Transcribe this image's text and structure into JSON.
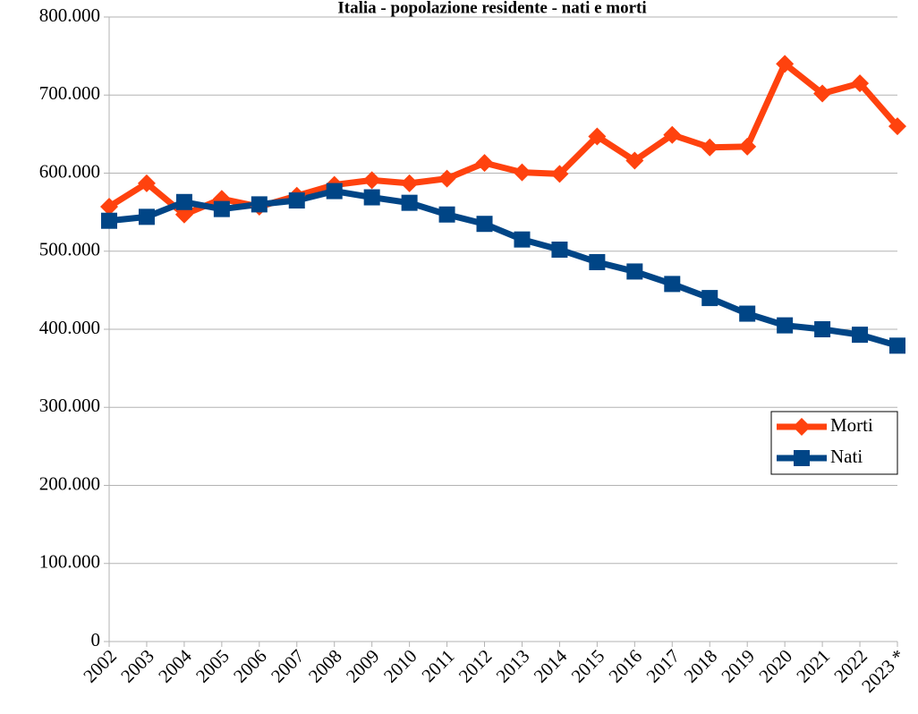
{
  "chart_data": {
    "type": "line",
    "title": "Italia - popolazione residente - nati e morti",
    "categories": [
      "2002",
      "2003",
      "2004",
      "2005",
      "2006",
      "2007",
      "2008",
      "2009",
      "2010",
      "2011",
      "2012",
      "2013",
      "2014",
      "2015",
      "2016",
      "2017",
      "2018",
      "2019",
      "2020",
      "2021",
      "2022",
      "2023 *"
    ],
    "series": [
      {
        "name": "Morti",
        "color": "#ff420e",
        "marker": "diamond",
        "values": [
          557000,
          587000,
          547000,
          567000,
          557000,
          571000,
          585000,
          591000,
          587000,
          593000,
          613000,
          601000,
          599000,
          647000,
          616000,
          649000,
          633000,
          634000,
          740000,
          702000,
          715000,
          660000
        ]
      },
      {
        "name": "Nati",
        "color": "#004586",
        "marker": "square",
        "values": [
          539000,
          544000,
          563000,
          554000,
          560000,
          565000,
          577000,
          569000,
          562000,
          547000,
          535000,
          515000,
          502000,
          486000,
          474000,
          458000,
          440000,
          420000,
          405000,
          400000,
          393000,
          379000
        ]
      }
    ],
    "ylim": [
      0,
      800000
    ],
    "yticks": [
      0,
      {
        "value": 100000,
        "label": "100.000"
      },
      {
        "value": 200000,
        "label": "200.000"
      },
      {
        "value": 300000,
        "label": "300.000"
      },
      {
        "value": 400000,
        "label": "400.000"
      },
      {
        "value": 500000,
        "label": "500.000"
      },
      {
        "value": 600000,
        "label": "600.000"
      },
      {
        "value": 700000,
        "label": "700.000"
      },
      {
        "value": 800000,
        "label": "800.000"
      }
    ],
    "grid": true,
    "legend_position": "right"
  }
}
